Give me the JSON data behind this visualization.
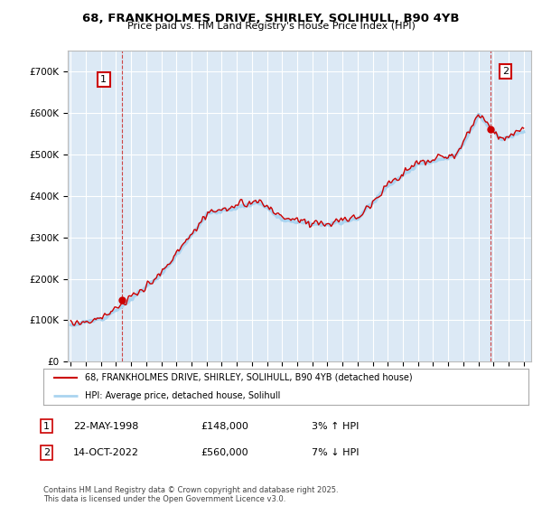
{
  "title": "68, FRANKHOLMES DRIVE, SHIRLEY, SOLIHULL, B90 4YB",
  "subtitle": "Price paid vs. HM Land Registry's House Price Index (HPI)",
  "legend_line1": "68, FRANKHOLMES DRIVE, SHIRLEY, SOLIHULL, B90 4YB (detached house)",
  "legend_line2": "HPI: Average price, detached house, Solihull",
  "annotation1_label": "1",
  "annotation1_date": "22-MAY-1998",
  "annotation1_price": "£148,000",
  "annotation1_hpi": "3% ↑ HPI",
  "annotation2_label": "2",
  "annotation2_date": "14-OCT-2022",
  "annotation2_price": "£560,000",
  "annotation2_hpi": "7% ↓ HPI",
  "footer": "Contains HM Land Registry data © Crown copyright and database right 2025.\nThis data is licensed under the Open Government Licence v3.0.",
  "hpi_color": "#aad4f0",
  "price_color": "#cc0000",
  "annotation_color": "#cc0000",
  "plot_bg_color": "#dce9f5",
  "grid_color": "#ffffff",
  "ylim": [
    0,
    750000
  ],
  "yticks": [
    0,
    100000,
    200000,
    300000,
    400000,
    500000,
    600000,
    700000
  ],
  "ytick_labels": [
    "£0",
    "£100K",
    "£200K",
    "£300K",
    "£400K",
    "£500K",
    "£600K",
    "£700K"
  ],
  "xstart_year": 1995,
  "xend_year": 2025,
  "t1_year": 1998.38,
  "t1_price": 148000,
  "t2_year": 2022.79,
  "t2_price": 560000
}
